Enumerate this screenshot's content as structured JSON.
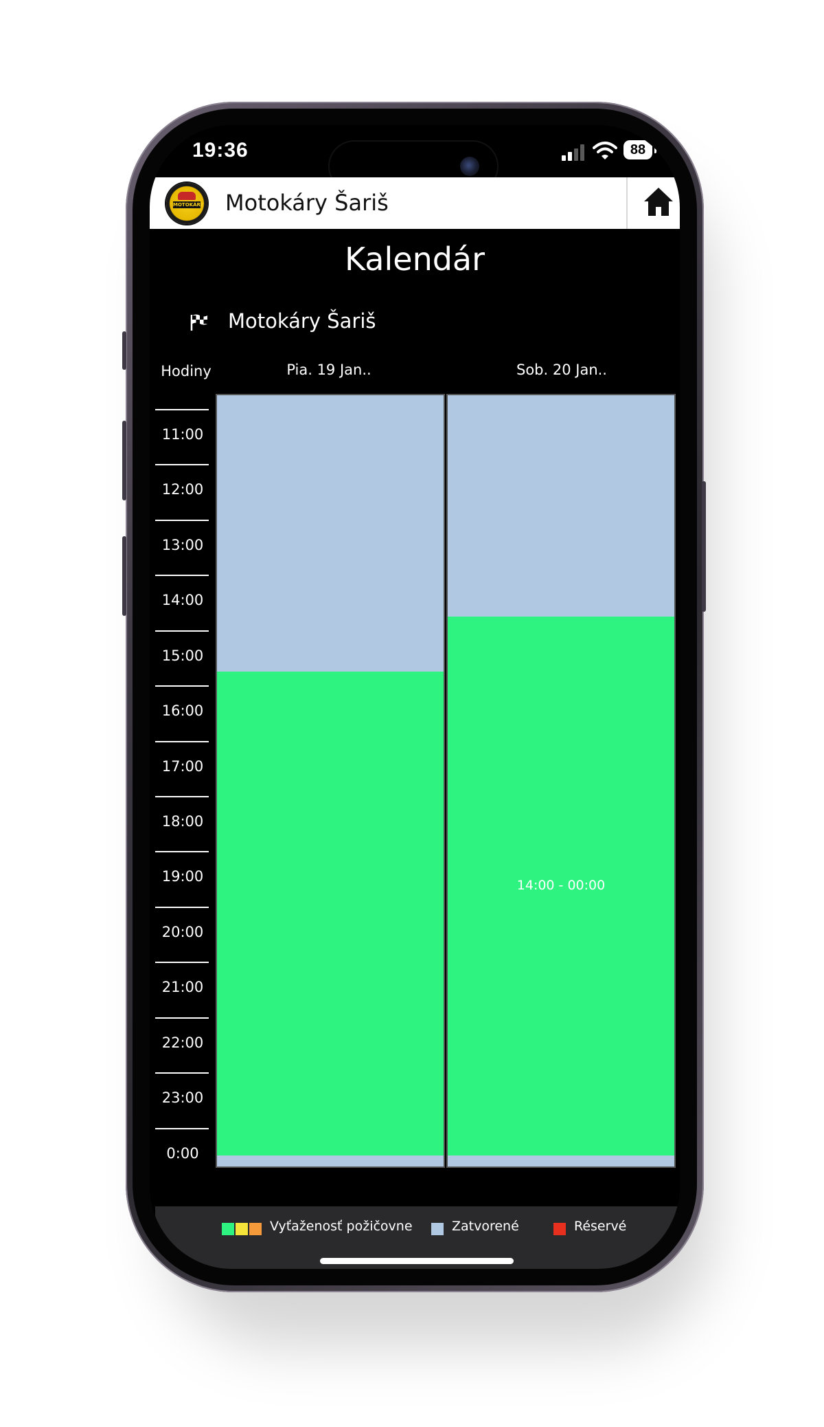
{
  "status_bar": {
    "time": "19:36",
    "battery": "88",
    "icons": [
      "signal-icon",
      "wifi-icon",
      "battery-icon"
    ]
  },
  "app_bar": {
    "title": "Motokáry Šariš",
    "logo_band_text": "MOTOKÁRY",
    "home_icon": "home-icon"
  },
  "page": {
    "title": "Kalendár",
    "venue": {
      "icon": "checkered-flag-icon",
      "name": "Motokáry Šariš"
    }
  },
  "calendar": {
    "hours_header": "Hodiny",
    "hours": [
      "11:00",
      "12:00",
      "13:00",
      "14:00",
      "15:00",
      "16:00",
      "17:00",
      "18:00",
      "19:00",
      "20:00",
      "21:00",
      "22:00",
      "23:00",
      "0:00"
    ],
    "days": [
      {
        "label": "Pia. 19 Jan..",
        "open_from_hour": 15,
        "open_to_hour": 24,
        "block_label": ""
      },
      {
        "label": "Sob. 20 Jan..",
        "open_from_hour": 14,
        "open_to_hour": 24,
        "block_label": "14:00 - 00:00"
      }
    ]
  },
  "legend": {
    "items": [
      {
        "label": "Vyťaženosť požičovne",
        "colors": [
          "#2ef380",
          "#f7e43a",
          "#f59a3a"
        ]
      },
      {
        "label": "Zatvorené",
        "colors": [
          "#b0c8e2"
        ]
      },
      {
        "label": "Réservé",
        "colors": [
          "#e8301e"
        ]
      }
    ]
  },
  "colors": {
    "open": "#2ef380",
    "closed": "#b0c8e2",
    "background": "#000000",
    "app_bar": "#ffffff"
  }
}
